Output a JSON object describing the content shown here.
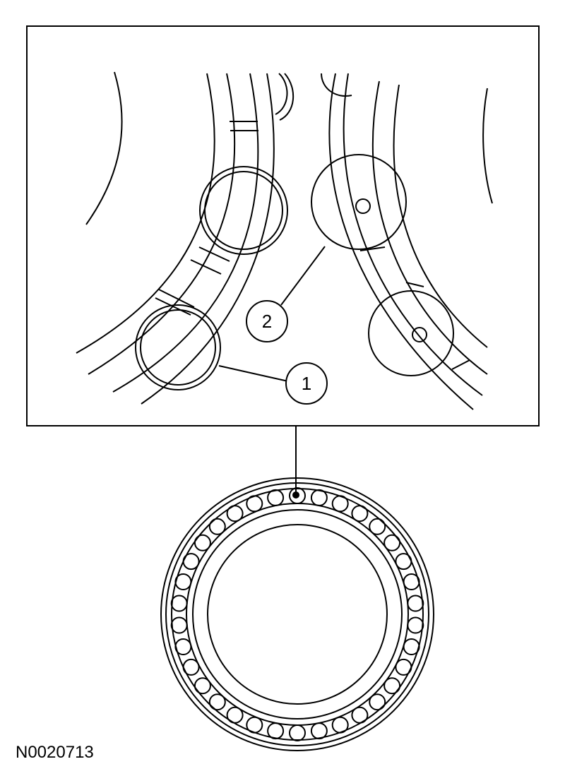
{
  "callouts": [
    {
      "label": "1"
    },
    {
      "label": "2"
    }
  ],
  "figure_id": "N0020713",
  "colors": {
    "stroke": "#000000",
    "background": "#ffffff"
  }
}
